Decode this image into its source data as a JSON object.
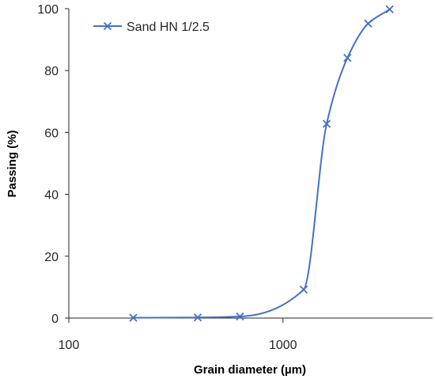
{
  "chart_data": {
    "type": "scatter",
    "xlabel": "Grain diameter (µm)",
    "ylabel": "Passing (%)",
    "x_scale": "log",
    "xlim": [
      100,
      5000
    ],
    "ylim": [
      0,
      100
    ],
    "x_tick_labels": [
      "100",
      "1000"
    ],
    "y_tick_labels": [
      "0",
      "20",
      "40",
      "60",
      "80",
      "100"
    ],
    "grid": false,
    "legend_position": "top-left",
    "series": [
      {
        "name": "Sand HN 1/2.5",
        "color": "#4472C4",
        "marker": "x",
        "line": "smooth",
        "x": [
          200,
          400,
          630,
          1250,
          1600,
          2000,
          2500,
          3150
        ],
        "y": [
          0.1,
          0.2,
          0.5,
          9.2,
          62.8,
          84.1,
          95.2,
          99.8
        ]
      }
    ]
  }
}
